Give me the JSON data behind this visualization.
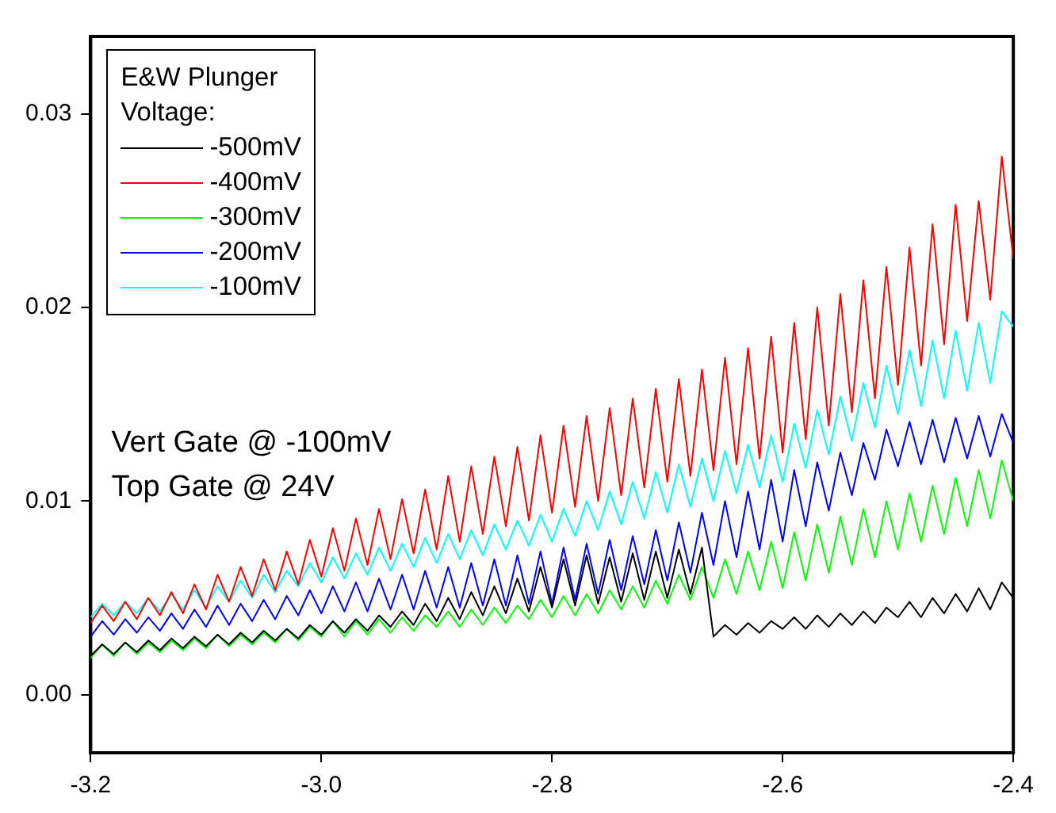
{
  "chart_data": {
    "type": "line",
    "legend_title": "E&W Plunger Voltage:",
    "legend": "top left",
    "grid": false,
    "xlim": [
      -3.2,
      -2.4
    ],
    "xticks": [
      -3.2,
      {
        "value": -3.0,
        "label": "-3.0"
      },
      -2.8,
      -2.6,
      -2.4
    ],
    "ylim": [
      -0.003,
      0.034
    ],
    "yticks": [
      {
        "value": 0,
        "label": "0.00"
      },
      {
        "value": 0.01,
        "label": "0.01"
      },
      {
        "value": 0.02,
        "label": "0.02"
      },
      {
        "value": 0.03,
        "label": "0.03"
      }
    ],
    "annotations": [
      "Vert Gate @ -100mV",
      "Top Gate @ 24V"
    ],
    "x": [
      -3.2,
      -3.19,
      -3.18,
      -3.17,
      -3.16,
      -3.15,
      -3.14,
      -3.13,
      -3.12,
      -3.11,
      -3.1,
      -3.09,
      -3.08,
      -3.07,
      -3.06,
      -3.05,
      -3.04,
      -3.03,
      -3.02,
      -3.01,
      -3.0,
      -2.99,
      -2.98,
      -2.97,
      -2.96,
      -2.95,
      -2.94,
      -2.93,
      -2.92,
      -2.91,
      -2.9,
      -2.89,
      -2.88,
      -2.87,
      -2.86,
      -2.85,
      -2.84,
      -2.83,
      -2.82,
      -2.81,
      -2.8,
      -2.79,
      -2.78,
      -2.77,
      -2.76,
      -2.75,
      -2.74,
      -2.73,
      -2.72,
      -2.71,
      -2.7,
      -2.69,
      -2.68,
      -2.67,
      -2.66,
      -2.65,
      -2.64,
      -2.63,
      -2.62,
      -2.61,
      -2.6,
      -2.59,
      -2.58,
      -2.57,
      -2.56,
      -2.55,
      -2.54,
      -2.53,
      -2.52,
      -2.51,
      -2.5,
      -2.49,
      -2.48,
      -2.47,
      -2.46,
      -2.45,
      -2.44,
      -2.43,
      -2.42,
      -2.41,
      -2.4
    ],
    "series": [
      {
        "name": "-500mV",
        "color": "#000000",
        "values": [
          0.002,
          0.0026,
          0.0021,
          0.0027,
          0.0022,
          0.0028,
          0.0023,
          0.0029,
          0.0024,
          0.003,
          0.0025,
          0.0031,
          0.0026,
          0.0032,
          0.0027,
          0.0033,
          0.0028,
          0.0034,
          0.0029,
          0.0036,
          0.0031,
          0.0038,
          0.0032,
          0.0039,
          0.0033,
          0.0041,
          0.0035,
          0.0043,
          0.0036,
          0.0047,
          0.0038,
          0.005,
          0.0039,
          0.0053,
          0.0041,
          0.0056,
          0.0042,
          0.006,
          0.0043,
          0.0066,
          0.0045,
          0.007,
          0.0046,
          0.0072,
          0.0047,
          0.0071,
          0.0048,
          0.0073,
          0.0049,
          0.0074,
          0.005,
          0.0075,
          0.0052,
          0.0076,
          0.003,
          0.0036,
          0.0031,
          0.0037,
          0.0032,
          0.0038,
          0.0034,
          0.004,
          0.0034,
          0.0041,
          0.0035,
          0.0042,
          0.0036,
          0.0043,
          0.0037,
          0.0045,
          0.004,
          0.0048,
          0.004,
          0.005,
          0.0042,
          0.0052,
          0.0043,
          0.0055,
          0.0044,
          0.0058,
          0.005
        ]
      },
      {
        "name": "-400mV",
        "color": "#ff0000",
        "values": [
          0.0037,
          0.0046,
          0.0038,
          0.0048,
          0.0039,
          0.005,
          0.0041,
          0.0053,
          0.0042,
          0.0057,
          0.0044,
          0.0062,
          0.0048,
          0.0066,
          0.0051,
          0.007,
          0.0054,
          0.0074,
          0.0057,
          0.008,
          0.0061,
          0.0086,
          0.0064,
          0.0091,
          0.0067,
          0.0096,
          0.007,
          0.0101,
          0.0073,
          0.0106,
          0.0075,
          0.0113,
          0.0079,
          0.0118,
          0.0083,
          0.0123,
          0.0087,
          0.0128,
          0.009,
          0.0134,
          0.0094,
          0.0139,
          0.0097,
          0.0144,
          0.01,
          0.0148,
          0.0103,
          0.0153,
          0.0107,
          0.0158,
          0.011,
          0.0163,
          0.0113,
          0.0168,
          0.0116,
          0.0174,
          0.0119,
          0.0179,
          0.0122,
          0.0185,
          0.0125,
          0.0192,
          0.0132,
          0.02,
          0.0139,
          0.0207,
          0.0146,
          0.0214,
          0.0153,
          0.0221,
          0.016,
          0.0231,
          0.017,
          0.0243,
          0.0181,
          0.0253,
          0.0193,
          0.0255,
          0.0204,
          0.0278,
          0.0225
        ]
      },
      {
        "name": "-300mV",
        "color": "#00ff00",
        "values": [
          0.0019,
          0.0026,
          0.002,
          0.0027,
          0.0021,
          0.0027,
          0.0022,
          0.0028,
          0.0023,
          0.0029,
          0.0024,
          0.0031,
          0.0025,
          0.0031,
          0.0026,
          0.0032,
          0.0027,
          0.0034,
          0.0028,
          0.0035,
          0.003,
          0.0038,
          0.003,
          0.0038,
          0.0031,
          0.0039,
          0.0032,
          0.004,
          0.0033,
          0.0041,
          0.0035,
          0.0043,
          0.0035,
          0.0044,
          0.0036,
          0.0045,
          0.0037,
          0.0046,
          0.0039,
          0.0049,
          0.004,
          0.0051,
          0.0041,
          0.0052,
          0.0042,
          0.0054,
          0.0044,
          0.0056,
          0.0045,
          0.0059,
          0.0047,
          0.0062,
          0.0049,
          0.0066,
          0.005,
          0.007,
          0.0052,
          0.0074,
          0.0054,
          0.0079,
          0.0055,
          0.0084,
          0.0059,
          0.0088,
          0.0063,
          0.0092,
          0.0067,
          0.0096,
          0.0071,
          0.01,
          0.0075,
          0.0104,
          0.0079,
          0.0108,
          0.0083,
          0.0112,
          0.0087,
          0.0116,
          0.0091,
          0.0121,
          0.01
        ]
      },
      {
        "name": "-200mV",
        "color": "#0000ff",
        "values": [
          0.003,
          0.0038,
          0.0031,
          0.0039,
          0.0032,
          0.004,
          0.0033,
          0.0042,
          0.0034,
          0.0044,
          0.0035,
          0.0046,
          0.0036,
          0.0047,
          0.0038,
          0.0049,
          0.0039,
          0.0051,
          0.0041,
          0.0054,
          0.0042,
          0.0056,
          0.0043,
          0.0058,
          0.0043,
          0.006,
          0.0044,
          0.0062,
          0.0044,
          0.0064,
          0.0045,
          0.0066,
          0.0045,
          0.0068,
          0.0046,
          0.007,
          0.0046,
          0.0072,
          0.0047,
          0.0074,
          0.0047,
          0.0076,
          0.0049,
          0.0078,
          0.0052,
          0.008,
          0.0054,
          0.0082,
          0.0057,
          0.0085,
          0.0059,
          0.0089,
          0.0063,
          0.0094,
          0.0067,
          0.01,
          0.0071,
          0.0105,
          0.0075,
          0.0111,
          0.0079,
          0.0116,
          0.0087,
          0.012,
          0.0095,
          0.0125,
          0.0103,
          0.013,
          0.0111,
          0.0137,
          0.0118,
          0.0141,
          0.0119,
          0.0142,
          0.012,
          0.0143,
          0.0122,
          0.0144,
          0.0123,
          0.0145,
          0.013
        ]
      },
      {
        "name": "-100mV",
        "color": "#00ffff",
        "values": [
          0.004,
          0.0047,
          0.0041,
          0.0048,
          0.0042,
          0.005,
          0.0043,
          0.0052,
          0.0044,
          0.0054,
          0.0045,
          0.0056,
          0.0048,
          0.0059,
          0.005,
          0.0062,
          0.0053,
          0.0064,
          0.0056,
          0.0068,
          0.0058,
          0.0071,
          0.006,
          0.0073,
          0.0062,
          0.0076,
          0.0064,
          0.0078,
          0.0066,
          0.0081,
          0.0068,
          0.0083,
          0.007,
          0.0085,
          0.0072,
          0.0088,
          0.0075,
          0.009,
          0.0077,
          0.0093,
          0.0079,
          0.0096,
          0.0082,
          0.01,
          0.0085,
          0.0105,
          0.0088,
          0.011,
          0.0091,
          0.0115,
          0.0094,
          0.0119,
          0.0097,
          0.0122,
          0.01,
          0.0126,
          0.0104,
          0.0129,
          0.0107,
          0.0134,
          0.011,
          0.014,
          0.0117,
          0.0147,
          0.0124,
          0.0154,
          0.0131,
          0.0161,
          0.0138,
          0.017,
          0.0145,
          0.0178,
          0.0149,
          0.0183,
          0.0153,
          0.0188,
          0.0157,
          0.0192,
          0.0161,
          0.0198,
          0.019
        ]
      }
    ]
  }
}
